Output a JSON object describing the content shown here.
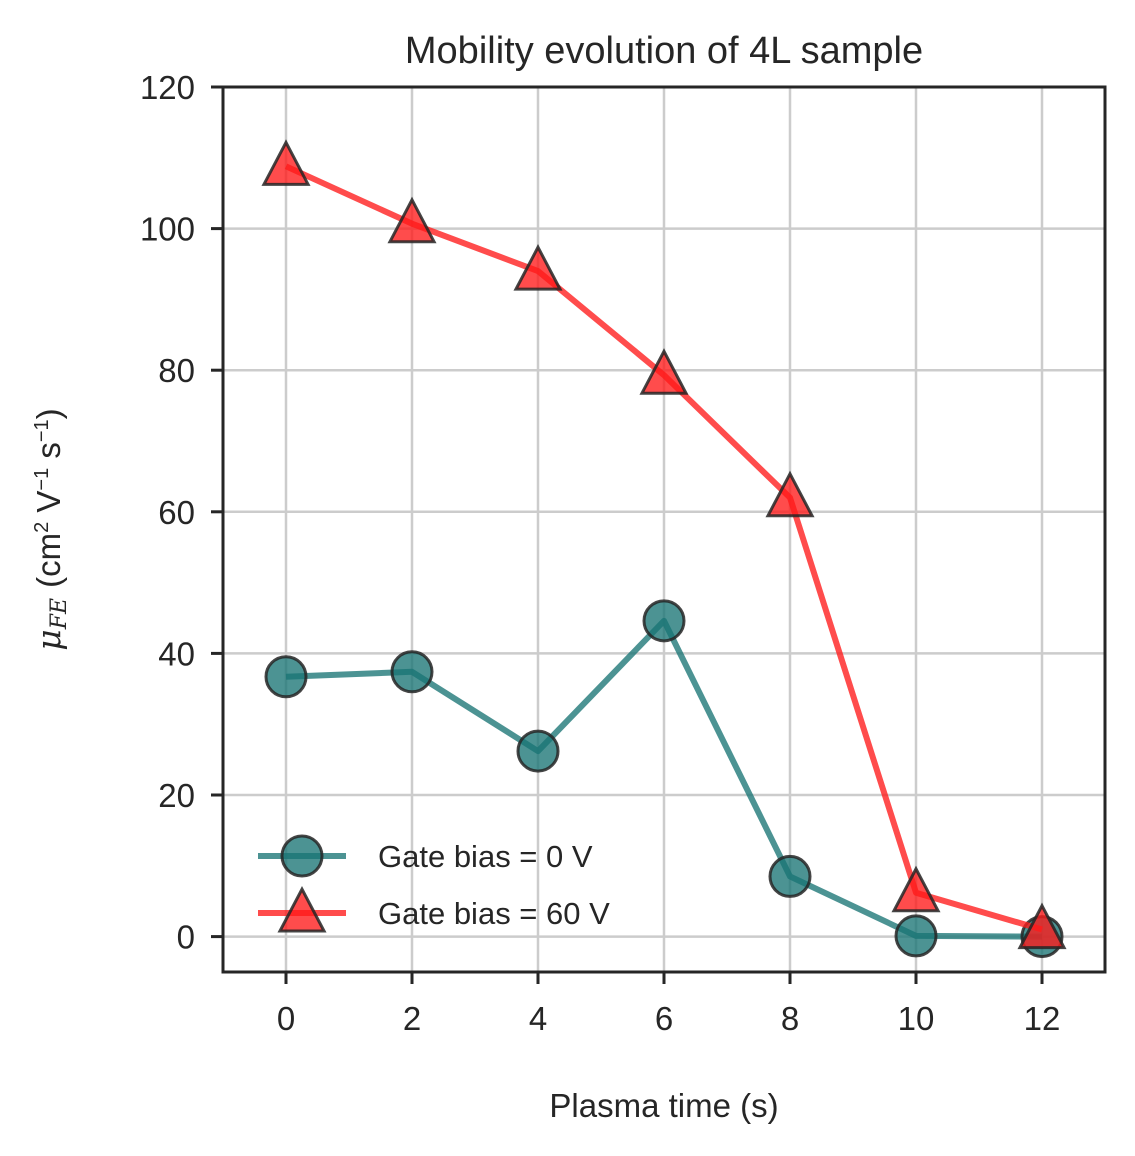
{
  "chart_data": {
    "type": "line",
    "title": "Mobility evolution of 4L sample",
    "xlabel": "Plasma time (s)",
    "ylabel": {
      "symbol": "μ",
      "subscript": "FE",
      "rest_open": "(cm",
      "exp2": "2",
      "v": " V",
      "exp_neg1": "−1",
      "s": " s",
      "exp_neg1b": "−1",
      "rest_close": ")"
    },
    "xlim": [
      -1,
      13
    ],
    "ylim": [
      -5,
      120
    ],
    "xticks": [
      0,
      2,
      4,
      6,
      8,
      10,
      12
    ],
    "yticks": [
      0,
      20,
      40,
      60,
      80,
      100,
      120
    ],
    "grid": true,
    "legend_position": "lower-left",
    "x": [
      0,
      2,
      4,
      6,
      8,
      10,
      12
    ],
    "series": [
      {
        "name": "Gate bias = 0 V",
        "marker": "circle",
        "color": "#1a7474",
        "values": [
          36.7,
          37.4,
          26.2,
          44.6,
          8.5,
          0.1,
          0.0
        ]
      },
      {
        "name": "Gate bias = 60 V",
        "marker": "triangle",
        "color": "#ff1a1a",
        "values": [
          108.8,
          100.7,
          94.0,
          79.3,
          62.0,
          6.2,
          1.0
        ]
      }
    ]
  }
}
